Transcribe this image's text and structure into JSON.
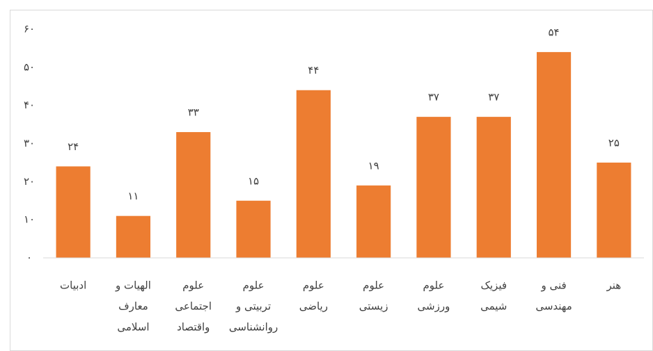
{
  "chart_data": {
    "type": "bar",
    "categories": [
      [
        "ادبیات"
      ],
      [
        "الهیات و",
        "معارف",
        "اسلامی"
      ],
      [
        "علوم",
        "اجتماعی",
        "واقتصاد"
      ],
      [
        "علوم",
        "تربیتی و",
        "روانشناسی"
      ],
      [
        "علوم",
        "ریاضی"
      ],
      [
        "علوم",
        "زیستی"
      ],
      [
        "علوم",
        "ورزشی"
      ],
      [
        "فیزیک",
        "شیمی"
      ],
      [
        "فنی و",
        "مهندسی"
      ],
      [
        "هنر"
      ]
    ],
    "values": [
      24,
      11,
      33,
      15,
      44,
      19,
      37,
      37,
      54,
      25
    ],
    "value_labels": [
      "۲۴",
      "۱۱",
      "۳۳",
      "۱۵",
      "۴۴",
      "۱۹",
      "۳۷",
      "۳۷",
      "۵۴",
      "۲۵"
    ],
    "color": "#ed7d31",
    "ylim": [
      0,
      60
    ],
    "yticks": [
      {
        "value": 0,
        "label": "۰"
      },
      {
        "value": 10,
        "label": "۱۰"
      },
      {
        "value": 20,
        "label": "۲۰"
      },
      {
        "value": 30,
        "label": "۳۰"
      },
      {
        "value": 40,
        "label": "۴۰"
      },
      {
        "value": 50,
        "label": "۵۰"
      },
      {
        "value": 60,
        "label": "۶۰"
      }
    ],
    "grid": false
  }
}
